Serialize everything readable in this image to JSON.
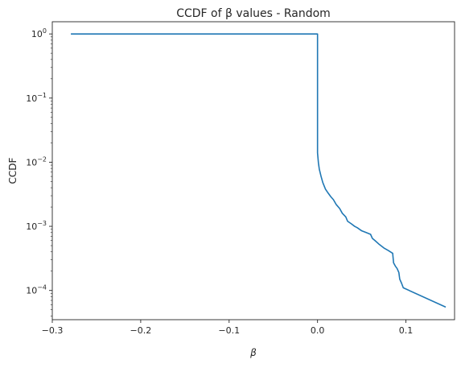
{
  "chart_data": {
    "type": "line",
    "title": "CCDF of β values - Random",
    "xlabel": "β",
    "ylabel": "CCDF",
    "xscale": "linear",
    "yscale": "log",
    "xlim": [
      -0.3,
      0.155
    ],
    "ylim": [
      3.5e-05,
      1.55
    ],
    "grid": false,
    "line_color": "#1f77b4",
    "x_ticks": [
      {
        "value": -0.3,
        "label": "−0.3"
      },
      {
        "value": -0.2,
        "label": "−0.2"
      },
      {
        "value": -0.1,
        "label": "−0.1"
      },
      {
        "value": 0.0,
        "label": "0.0"
      },
      {
        "value": 0.1,
        "label": "0.1"
      }
    ],
    "y_ticks": [
      {
        "value": 1,
        "base": "10",
        "exp": "0"
      },
      {
        "value": 0.1,
        "base": "10",
        "exp": "−1"
      },
      {
        "value": 0.01,
        "base": "10",
        "exp": "−2"
      },
      {
        "value": 0.001,
        "base": "10",
        "exp": "−3"
      },
      {
        "value": 0.0001,
        "base": "10",
        "exp": "−4"
      }
    ],
    "series": [
      {
        "x": [
          -0.279,
          0.0,
          0.0,
          0.0,
          0.001,
          0.002,
          0.004,
          0.006,
          0.009,
          0.012,
          0.015,
          0.018,
          0.021,
          0.025,
          0.028,
          0.032,
          0.034,
          0.038,
          0.042,
          0.045,
          0.05,
          0.055,
          0.06,
          0.062,
          0.065,
          0.07,
          0.075,
          0.08,
          0.085,
          0.086,
          0.088,
          0.09,
          0.092,
          0.093,
          0.095,
          0.097,
          0.145
        ],
        "y": [
          1.0,
          1.0,
          0.5,
          0.014,
          0.0098,
          0.0078,
          0.006,
          0.0048,
          0.0038,
          0.0033,
          0.0029,
          0.0026,
          0.0022,
          0.0019,
          0.0016,
          0.0014,
          0.0012,
          0.0011,
          0.001,
          0.00095,
          0.00085,
          0.0008,
          0.00075,
          0.00065,
          0.0006,
          0.00052,
          0.00046,
          0.00042,
          0.00038,
          0.00027,
          0.00024,
          0.00022,
          0.00019,
          0.00015,
          0.00013,
          0.00011,
          5.5e-05
        ]
      }
    ]
  }
}
